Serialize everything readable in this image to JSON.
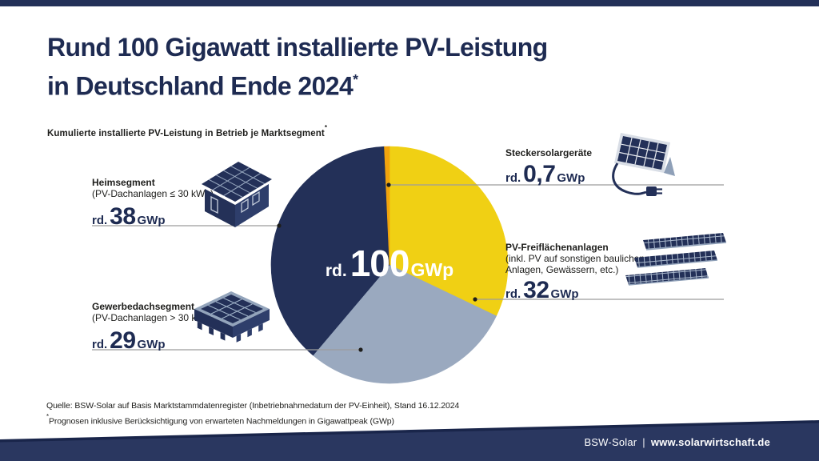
{
  "header": {
    "title_line1": "Rund 100 Gigawatt installierte PV-Leistung",
    "title_line2": "in Deutschland Ende 2024",
    "title_mark": "*",
    "subtitle": "Kumulierte installierte PV-Leistung in Betrieb je Marktsegment",
    "subtitle_mark": "*"
  },
  "chart_data": {
    "type": "pie",
    "title": "Kumulierte installierte PV-Leistung in Betrieb je Marktsegment*",
    "unit": "GWp",
    "direction": "clockwise",
    "start_angle_deg": 0,
    "center_label": {
      "prefix": "rd.",
      "value": "100",
      "unit": "GWp"
    },
    "total_label": "rd. 100 GWp",
    "segments": [
      {
        "id": "freiflaechen",
        "name": "PV-Freiflächenanlagen",
        "value": 32,
        "display_value": "rd. 32 GWp",
        "color": "#f0d014"
      },
      {
        "id": "gewerbedach",
        "name": "Gewerbedachsegment",
        "value": 29,
        "display_value": "rd. 29 GWp",
        "color": "#9aa9bf"
      },
      {
        "id": "heim",
        "name": "Heimsegment",
        "value": 38,
        "display_value": "rd. 38 GWp",
        "color": "#233058"
      },
      {
        "id": "stecker",
        "name": "Steckersolargeräte",
        "value": 0.7,
        "display_value": "rd. 0,7 GWp",
        "color": "#f2a30d"
      }
    ]
  },
  "callouts": {
    "heim": {
      "title": "Heimsegment",
      "subtitle": "(PV-Dachanlagen ≤ 30 kWp)",
      "prefix": "rd.",
      "value": "38",
      "unit": "GWp"
    },
    "gewerbe": {
      "title": "Gewerbedachsegment",
      "subtitle": "(PV-Dachanlagen > 30 kWp)",
      "prefix": "rd.",
      "value": "29",
      "unit": "GWp"
    },
    "stecker": {
      "title": "Steckersolargeräte",
      "prefix": "rd.",
      "value": "0,7",
      "unit": "GWp"
    },
    "freiflaechen": {
      "title": "PV-Freiflächenanlagen",
      "subtitle": "(inkl. PV auf sonstigen baulichen Anlagen, Gewässern, etc.)",
      "prefix": "rd.",
      "value": "32",
      "unit": "GWp"
    }
  },
  "footnotes": {
    "source": "Quelle: BSW-Solar auf Basis Marktstammdatenregister (Inbetriebnahmedatum der PV-Einheit), Stand 16.12.2024",
    "prognosis_mark": "*",
    "prognosis": "Prognosen inklusive Berücksichtigung von erwarteten Nachmeldungen in Gigawattpeak (GWp)"
  },
  "footer": {
    "brand": "BSW-Solar",
    "separator": "|",
    "url": "www.solarwirtschaft.de"
  },
  "colors": {
    "navy": "#233058",
    "title_navy": "#1e2b52",
    "yellow": "#f0d014",
    "orange": "#f2a30d",
    "blue_gray": "#9aa9bf",
    "band_navy": "#2a3760",
    "text_dark": "#1d1d1b",
    "leader_gray": "#9c9c9c",
    "white": "#ffffff"
  }
}
